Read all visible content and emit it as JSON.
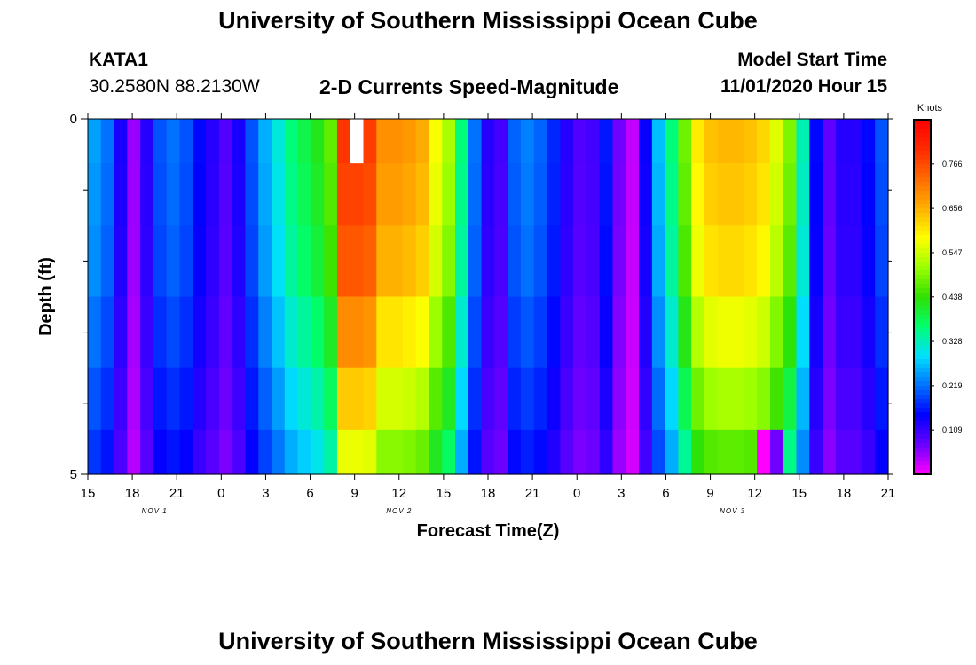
{
  "header": {
    "title": "University of Southern Mississippi Ocean Cube",
    "station": "KATA1",
    "coords": "30.2580N 88.2130W",
    "plot_title": "2-D Currents Speed-Magnitude",
    "model_start_label": "Model Start Time",
    "model_start_value": "11/01/2020 Hour 15"
  },
  "footer": {
    "title": "University of Southern Mississippi Ocean Cube"
  },
  "colors": {
    "colormap": [
      "#ff00ff",
      "#6a00ff",
      "#0000ff",
      "#0070ff",
      "#00e0ff",
      "#00ff70",
      "#30e000",
      "#9cff00",
      "#ffff00",
      "#ffb000",
      "#ff6a00",
      "#ff2a00",
      "#ff0000"
    ],
    "gap": "#ffffff"
  },
  "chart_data": {
    "type": "heatmap",
    "title": "2-D Currents Speed-Magnitude",
    "xlabel": "Forecast Time(Z)",
    "ylabel": "Depth (ft)",
    "colorbar_label": "Knots",
    "x_hours_range": [
      0,
      54
    ],
    "depth_range": [
      0,
      5
    ],
    "depth_levels": [
      0.25,
      1.0,
      2.0,
      3.0,
      4.0,
      4.75
    ],
    "y_tick_labels": [
      {
        "depth": 0,
        "label": "0"
      },
      {
        "depth": 5,
        "label": "5"
      }
    ],
    "y_minor_ticks": [
      1,
      2,
      3,
      4
    ],
    "x_tick_labels": [
      "15",
      "18",
      "21",
      "0",
      "3",
      "6",
      "9",
      "12",
      "15",
      "18",
      "21",
      "0",
      "3",
      "6",
      "9",
      "12",
      "15",
      "18",
      "21"
    ],
    "date_labels": [
      {
        "hour": 4.5,
        "label": "NOV 1"
      },
      {
        "hour": 21,
        "label": "NOV 2"
      },
      {
        "hour": 43.5,
        "label": "NOV 3"
      }
    ],
    "colorbar_ticks": [
      "0.766",
      "0.656",
      "0.547",
      "0.438",
      "0.328",
      "0.219",
      "0.109"
    ],
    "colorbar_range": [
      0.0,
      0.875
    ],
    "missing": [
      {
        "hour": 20,
        "depth_index": 0
      }
    ],
    "surface_profile": [
      0.25,
      0.22,
      0.13,
      0.05,
      0.12,
      0.2,
      0.22,
      0.2,
      0.15,
      0.12,
      0.09,
      0.13,
      0.2,
      0.26,
      0.31,
      0.36,
      0.39,
      0.42,
      0.47,
      0.79,
      0.79,
      0.78,
      0.69,
      0.69,
      0.68,
      0.66,
      0.58,
      0.52,
      0.36,
      0.22,
      0.12,
      0.1,
      0.21,
      0.23,
      0.21,
      0.17,
      0.12,
      0.09,
      0.1,
      0.16,
      0.07,
      0.03,
      0.14,
      0.27,
      0.36,
      0.48,
      0.6,
      0.64,
      0.65,
      0.65,
      0.64,
      0.62,
      0.56,
      0.49,
      0.33,
      0.15,
      0.08,
      0.12,
      0.12,
      0.15,
      0.2
    ],
    "depth_scale": [
      1.0,
      0.98,
      0.95,
      0.88,
      0.8,
      0.72
    ],
    "bottom_overrides": [
      {
        "hour": 51,
        "value": 0.0
      },
      {
        "hour": 52,
        "value": 0.07
      }
    ]
  }
}
